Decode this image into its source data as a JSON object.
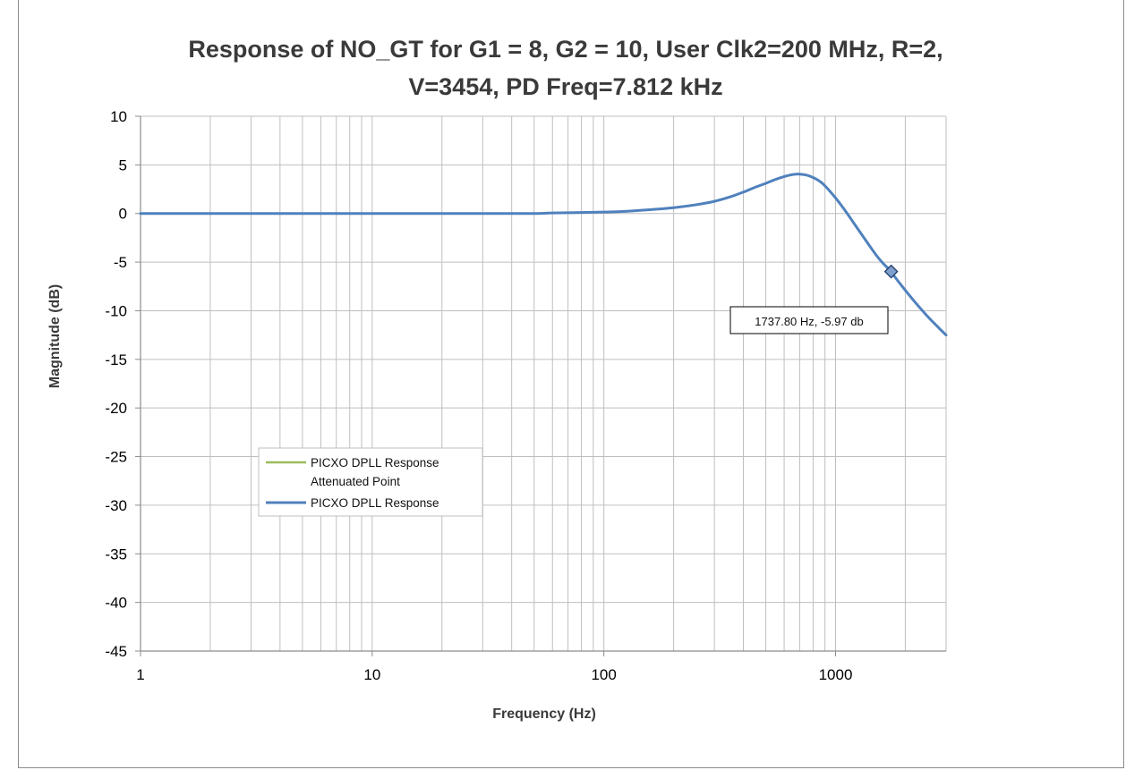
{
  "chart_data": {
    "type": "line",
    "title_line1": "Response of NO_GT for G1 = 8, G2 = 10, User Clk2=200 MHz,  R=2,",
    "title_line2": "V=3454, PD Freq=7.812 kHz",
    "xlabel": "Frequency (Hz)",
    "ylabel": "Magnitude (dB)",
    "x_scale": "log",
    "xlim": [
      1,
      3000
    ],
    "ylim": [
      -45,
      10
    ],
    "x_ticks": [
      1,
      10,
      100,
      1000
    ],
    "x_tick_labels": [
      "1",
      "10",
      "100",
      "1000"
    ],
    "y_ticks": [
      10,
      5,
      0,
      -5,
      -10,
      -15,
      -20,
      -25,
      -30,
      -35,
      -40,
      -45
    ],
    "y_tick_labels": [
      "10",
      "5",
      "0",
      "-5",
      "-10",
      "-15",
      "-20",
      "-25",
      "-30",
      "-35",
      "-40",
      "-45"
    ],
    "grid": true,
    "legend_position": "left, lower-middle",
    "legend": [
      {
        "lines": [
          "PICXO DPLL Response",
          "Attenuated Point"
        ],
        "color": "#9bbb59"
      },
      {
        "lines": [
          "PICXO DPLL Response"
        ],
        "color": "#4f81bd"
      }
    ],
    "series": [
      {
        "name": "PICXO DPLL Response",
        "color": "#4f81bd",
        "x": [
          1,
          2,
          5,
          10,
          20,
          30,
          40,
          50,
          60,
          80,
          100,
          120,
          150,
          200,
          250,
          300,
          350,
          400,
          450,
          500,
          550,
          600,
          650,
          700,
          750,
          800,
          850,
          900,
          1000,
          1100,
          1200,
          1300,
          1400,
          1500,
          1600,
          1737.8,
          1800,
          2000,
          2200,
          2500,
          2800,
          3000
        ],
        "y": [
          0,
          0,
          0,
          0,
          0,
          0,
          0,
          0,
          0.05,
          0.1,
          0.15,
          0.2,
          0.35,
          0.6,
          0.9,
          1.25,
          1.7,
          2.2,
          2.7,
          3.1,
          3.5,
          3.8,
          4.0,
          4.05,
          3.95,
          3.7,
          3.35,
          2.85,
          1.6,
          0.3,
          -1.0,
          -2.2,
          -3.3,
          -4.3,
          -5.1,
          -5.97,
          -6.5,
          -7.9,
          -9.1,
          -10.6,
          -11.8,
          -12.5
        ]
      }
    ],
    "marked_point": {
      "series": "PICXO DPLL Response Attenuated Point",
      "x": 1737.8,
      "y": -5.97,
      "label": "1737.80 Hz, -5.97 db"
    }
  }
}
